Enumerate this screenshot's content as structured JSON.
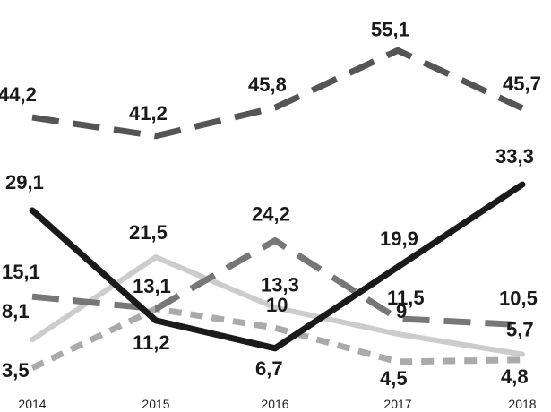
{
  "chart_data": {
    "type": "line",
    "title": "",
    "xlabel": "",
    "ylabel": "",
    "x": [
      "2014",
      "2015",
      "2016",
      "2017",
      "2018"
    ],
    "ylim": [
      0,
      60
    ],
    "grid": false,
    "legend": "none",
    "series": [
      {
        "style": "long-dash",
        "color": "#555555",
        "values": [
          44.2,
          41.2,
          45.8,
          55.1,
          45.7
        ],
        "labels": [
          "44,2",
          "41,2",
          "45,8",
          "55,1",
          "45,7"
        ]
      },
      {
        "style": "solid",
        "color": "#1a1a1a",
        "values": [
          29.1,
          11.2,
          6.7,
          19.9,
          33.3
        ],
        "labels": [
          "29,1",
          "11,2",
          "6,7",
          "19,9",
          "33,3"
        ]
      },
      {
        "style": "long-dash",
        "color": "#777777",
        "values": [
          15.1,
          13.1,
          24.2,
          11.5,
          10.5
        ],
        "labels": [
          "15,1",
          "13,1",
          "24,2",
          "11,5",
          "10,5"
        ]
      },
      {
        "style": "solid",
        "color": "#cccccc",
        "values": [
          8.1,
          21.5,
          13.3,
          9,
          5.7
        ],
        "labels": [
          "8,1",
          "21,5",
          "13,3",
          "9",
          "5,7"
        ]
      },
      {
        "style": "short-dash",
        "color": "#aaaaaa",
        "values": [
          3.5,
          13.1,
          10,
          4.5,
          4.8
        ],
        "labels": [
          "3,5",
          "",
          "10",
          "4,5",
          "4,8"
        ]
      }
    ]
  }
}
